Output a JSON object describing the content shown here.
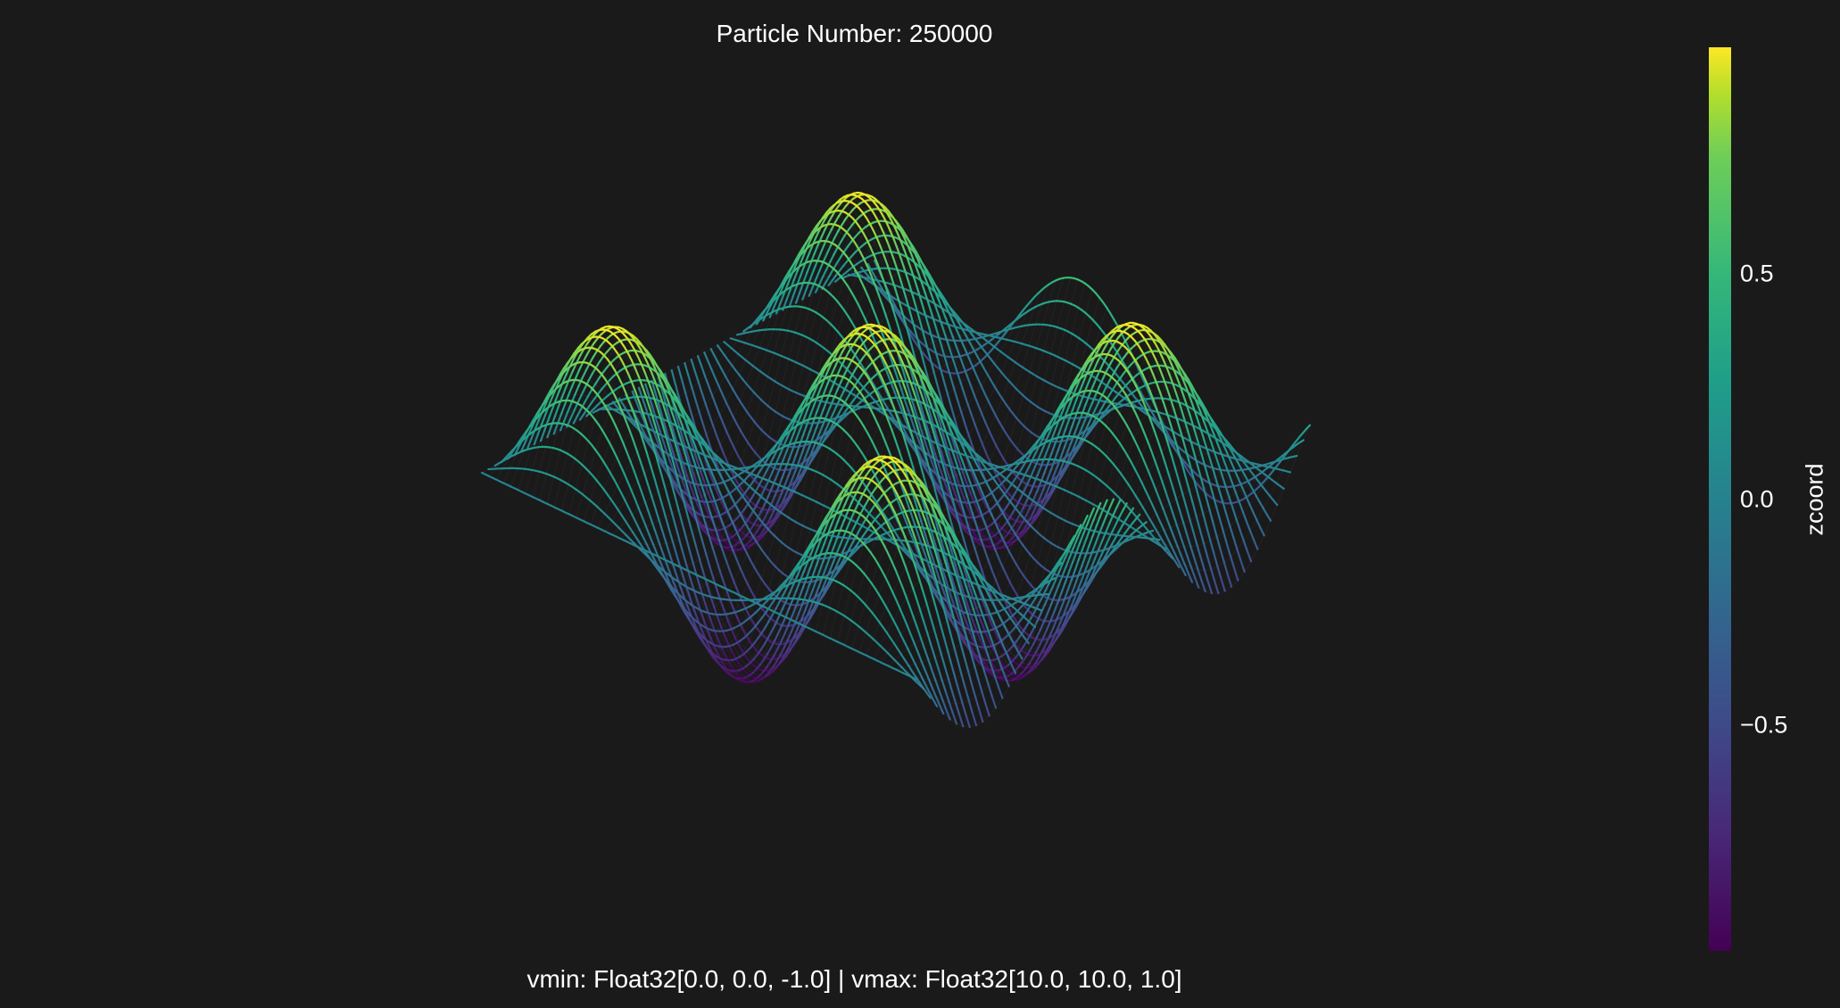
{
  "title": "Particle Number: 250000",
  "footer": "vmin: Float32[0.0, 0.0, -1.0] | vmax: Float32[10.0, 10.0, 1.0]",
  "chart_data": {
    "type": "surface",
    "function": "z = sin(x) * sin(y)",
    "x_range": [
      0,
      10
    ],
    "y_range": [
      0,
      10
    ],
    "z_range": [
      -1,
      1
    ],
    "particle_count": 250000,
    "colormap": "viridis",
    "background": "#1a1a1a",
    "colorbar": {
      "label": "zcoord",
      "ticks": [
        {
          "value": 0.5,
          "label": "0.5"
        },
        {
          "value": 0.0,
          "label": "0.0"
        },
        {
          "value": -0.5,
          "label": "−0.5"
        }
      ],
      "range": [
        -1,
        1
      ]
    }
  }
}
